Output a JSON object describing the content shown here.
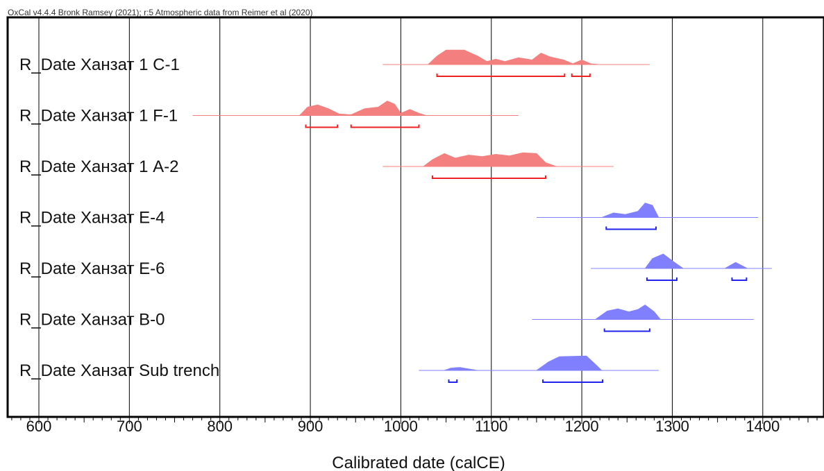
{
  "chart_data": {
    "type": "density",
    "title": "OxCal v4.4.4 Bronk Ramsey (2021); r:5 Atmospheric data from Reimer et al (2020)",
    "xlabel": "Calibrated date (calCE)",
    "xlim": [
      565,
      1470
    ],
    "xticks": [
      600,
      700,
      800,
      900,
      1000,
      1100,
      1200,
      1300,
      1400
    ],
    "xtick_labels": [
      "600",
      "700",
      "800",
      "900",
      "1000",
      "1100",
      "1200",
      "1300",
      "1400"
    ],
    "grid": true,
    "series": [
      {
        "name": "R_Date Ханзат 1 C-1",
        "color": "#f47f7f",
        "range_color": "#ee2222",
        "line": [
          980,
          1275
        ],
        "density": [
          [
            1030,
            0
          ],
          [
            1040,
            0.55
          ],
          [
            1050,
            0.95
          ],
          [
            1070,
            0.95
          ],
          [
            1085,
            0.55
          ],
          [
            1095,
            0.2
          ],
          [
            1105,
            0.35
          ],
          [
            1115,
            0.2
          ],
          [
            1130,
            0.45
          ],
          [
            1145,
            0.3
          ],
          [
            1155,
            0.75
          ],
          [
            1165,
            0.5
          ],
          [
            1180,
            0.3
          ],
          [
            1190,
            0.05
          ],
          [
            1200,
            0.3
          ],
          [
            1210,
            0.05
          ],
          [
            1220,
            0
          ]
        ],
        "ranges": [
          [
            1040,
            1181
          ],
          [
            1189,
            1209
          ]
        ]
      },
      {
        "name": "R_Date Ханзат 1 F-1",
        "color": "#f47f7f",
        "range_color": "#ee2222",
        "line": [
          770,
          1130
        ],
        "density": [
          [
            888,
            0
          ],
          [
            897,
            0.55
          ],
          [
            908,
            0.7
          ],
          [
            920,
            0.45
          ],
          [
            932,
            0.1
          ],
          [
            945,
            0.05
          ],
          [
            960,
            0.45
          ],
          [
            975,
            0.55
          ],
          [
            985,
            0.95
          ],
          [
            993,
            0.75
          ],
          [
            1000,
            0.15
          ],
          [
            1010,
            0.4
          ],
          [
            1020,
            0.15
          ],
          [
            1028,
            0
          ]
        ],
        "ranges": [
          [
            895,
            930
          ],
          [
            945,
            1020
          ]
        ]
      },
      {
        "name": "R_Date Ханзат 1 A-2",
        "color": "#f47f7f",
        "range_color": "#ee2222",
        "line": [
          980,
          1235
        ],
        "density": [
          [
            1025,
            0
          ],
          [
            1035,
            0.45
          ],
          [
            1048,
            0.85
          ],
          [
            1060,
            0.55
          ],
          [
            1075,
            0.75
          ],
          [
            1090,
            0.65
          ],
          [
            1105,
            0.8
          ],
          [
            1120,
            0.7
          ],
          [
            1135,
            0.9
          ],
          [
            1150,
            0.85
          ],
          [
            1160,
            0.25
          ],
          [
            1172,
            0
          ]
        ],
        "ranges": [
          [
            1035,
            1160
          ]
        ]
      },
      {
        "name": "R_Date Ханзат E-4",
        "color": "#8080ff",
        "range_color": "#2222ee",
        "line": [
          1150,
          1395
        ],
        "density": [
          [
            1222,
            0
          ],
          [
            1235,
            0.3
          ],
          [
            1248,
            0.2
          ],
          [
            1262,
            0.4
          ],
          [
            1270,
            0.95
          ],
          [
            1278,
            0.8
          ],
          [
            1285,
            0
          ]
        ],
        "ranges": [
          [
            1227,
            1282
          ]
        ]
      },
      {
        "name": "R_Date Ханзат E-6",
        "color": "#8080ff",
        "range_color": "#2222ee",
        "line": [
          1210,
          1410
        ],
        "density": [
          [
            1270,
            0
          ],
          [
            1278,
            0.65
          ],
          [
            1290,
            0.95
          ],
          [
            1300,
            0.5
          ],
          [
            1312,
            0
          ],
          [
            1358,
            0
          ],
          [
            1370,
            0.4
          ],
          [
            1383,
            0
          ]
        ],
        "ranges": [
          [
            1272,
            1305
          ],
          [
            1366,
            1382
          ]
        ]
      },
      {
        "name": "R_Date Ханзат B-0",
        "color": "#8080ff",
        "range_color": "#2222ee",
        "line": [
          1145,
          1390
        ],
        "density": [
          [
            1215,
            0
          ],
          [
            1228,
            0.55
          ],
          [
            1240,
            0.7
          ],
          [
            1252,
            0.5
          ],
          [
            1262,
            0.65
          ],
          [
            1270,
            0.95
          ],
          [
            1280,
            0.5
          ],
          [
            1287,
            0
          ]
        ],
        "ranges": [
          [
            1225,
            1275
          ]
        ]
      },
      {
        "name": "R_Date Ханзат Sub trench",
        "color": "#8080ff",
        "range_color": "#2222ee",
        "line": [
          1020,
          1285
        ],
        "density": [
          [
            1048,
            0
          ],
          [
            1055,
            0.15
          ],
          [
            1065,
            0.2
          ],
          [
            1085,
            0
          ],
          [
            1150,
            0
          ],
          [
            1163,
            0.55
          ],
          [
            1175,
            0.9
          ],
          [
            1205,
            0.95
          ],
          [
            1215,
            0.4
          ],
          [
            1222,
            0
          ]
        ],
        "ranges": [
          [
            1053,
            1062
          ],
          [
            1157,
            1223
          ]
        ]
      }
    ]
  }
}
